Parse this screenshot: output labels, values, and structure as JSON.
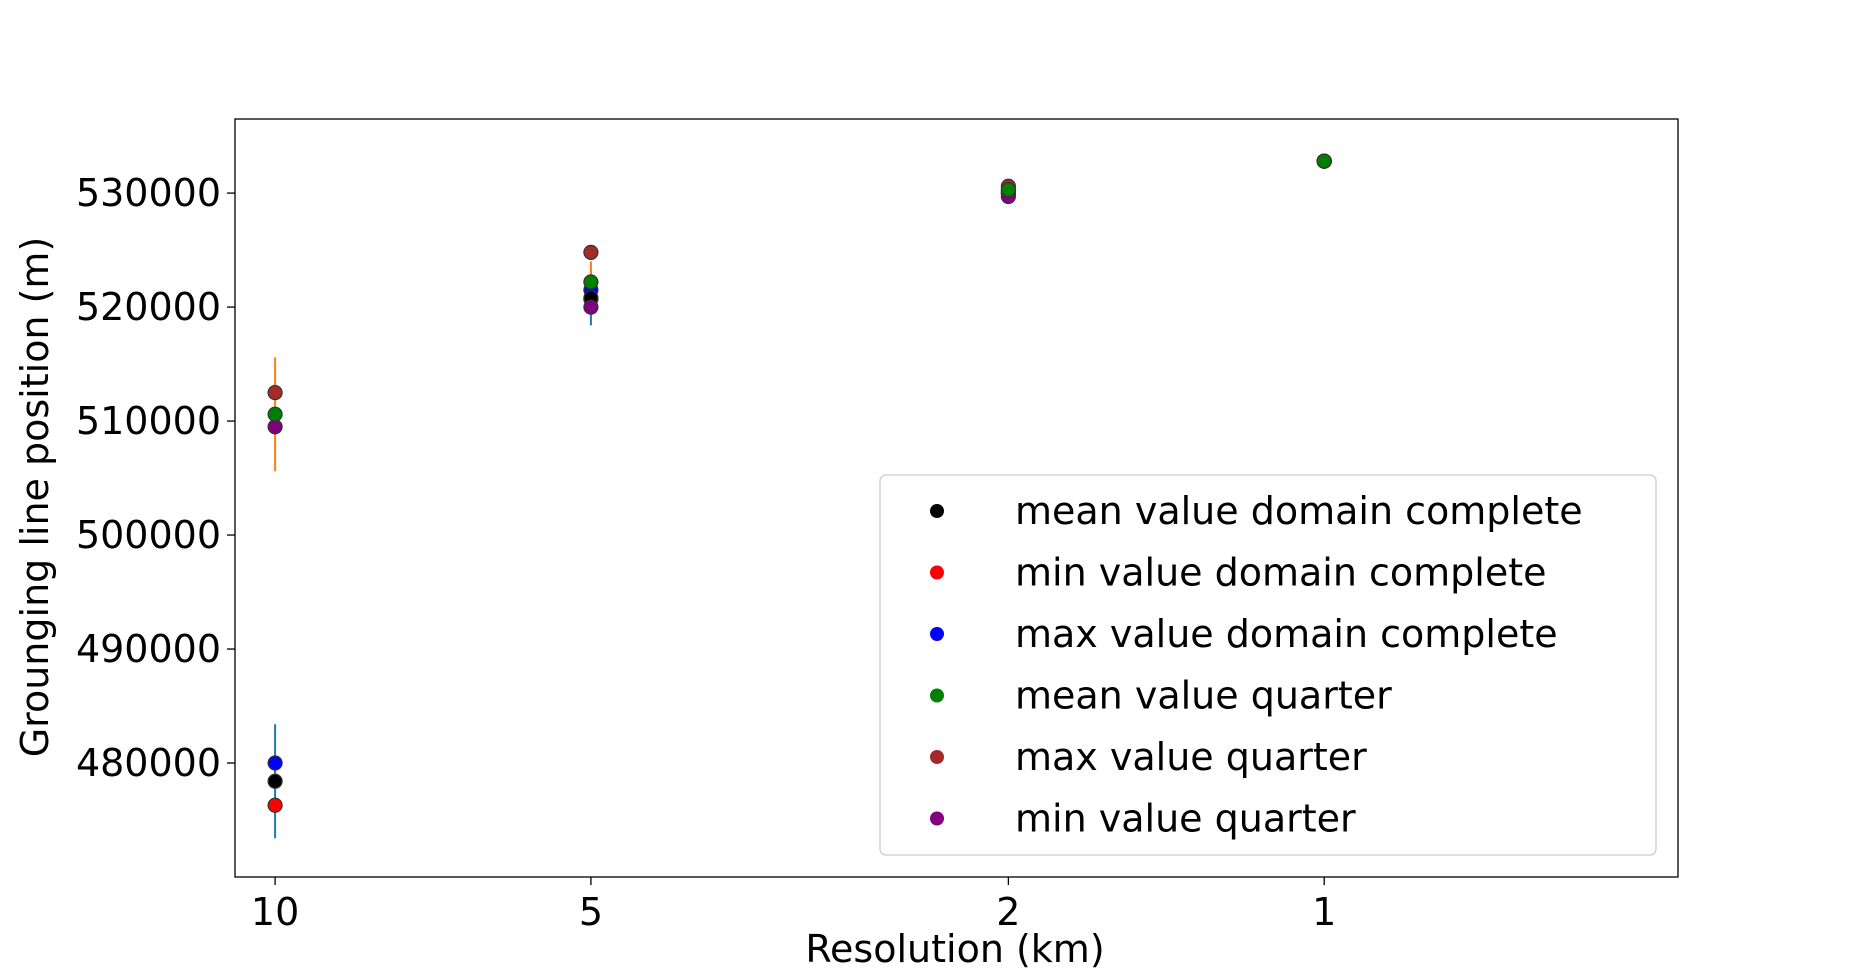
{
  "chart_data": {
    "type": "scatter",
    "xlabel": "Resolution (km)",
    "ylabel": "Grounging line position (m)",
    "x_categories": [
      10,
      5,
      2,
      1
    ],
    "x_tick_labels": [
      "10",
      "5",
      "2",
      "1"
    ],
    "xlim": [
      10.92,
      0.46
    ],
    "ylim": [
      470000,
      536500
    ],
    "y_ticks": [
      480000,
      490000,
      500000,
      510000,
      520000,
      530000
    ],
    "y_tick_labels": [
      "480000",
      "490000",
      "500000",
      "510000",
      "520000",
      "530000"
    ],
    "grid": false,
    "legend_position": "lower right",
    "series": [
      {
        "name": "mean value domain complete",
        "color": "#000000",
        "x": [
          10,
          5,
          2,
          1
        ],
        "y": [
          478400,
          520800,
          530000,
          532800
        ]
      },
      {
        "name": "min value domain complete",
        "color": "#ff0000",
        "x": [
          10,
          5,
          2,
          1
        ],
        "y": [
          476300,
          520700,
          530000,
          532800
        ]
      },
      {
        "name": "max value domain complete",
        "color": "#0000ff",
        "x": [
          10,
          5,
          2,
          1
        ],
        "y": [
          480000,
          521500,
          530200,
          532800
        ]
      },
      {
        "name": "mean value quarter",
        "color": "#008000",
        "x": [
          10,
          5,
          2,
          1
        ],
        "y": [
          510600,
          522200,
          530300,
          532800
        ]
      },
      {
        "name": "max value quarter",
        "color": "#a52a2a",
        "x": [
          10,
          5,
          2,
          1
        ],
        "y": [
          512500,
          524800,
          530600,
          532800
        ]
      },
      {
        "name": "min value quarter",
        "color": "#800080",
        "x": [
          10,
          5,
          2,
          1
        ],
        "y": [
          509500,
          520000,
          529700,
          532800
        ]
      }
    ],
    "error_bars": [
      {
        "group": "domain complete",
        "color": "#1f77b4",
        "x": [
          10,
          5,
          2,
          1
        ],
        "center": [
          478400,
          520800,
          530000,
          532800
        ],
        "err": [
          5000,
          2400,
          300,
          100
        ]
      },
      {
        "group": "quarter",
        "color": "#ff7f0e",
        "x": [
          10,
          5,
          2,
          1
        ],
        "center": [
          510600,
          522200,
          530300,
          532800
        ],
        "err": [
          5000,
          1800,
          400,
          100
        ]
      }
    ]
  }
}
